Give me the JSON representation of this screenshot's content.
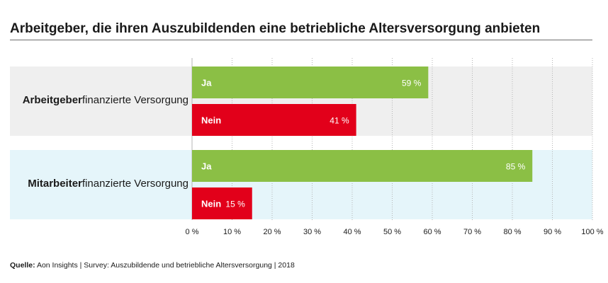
{
  "chart_data": {
    "type": "bar",
    "orientation": "horizontal",
    "title": "Arbeitgeber, die ihren Auszubildenden eine betriebliche Altersversorgung anbieten",
    "xlim": [
      0,
      100
    ],
    "x_ticks": [
      "0 %",
      "10 %",
      "20 %",
      "30 %",
      "40 %",
      "50 %",
      "60 %",
      "70 %",
      "80 %",
      "90 %",
      "100 %"
    ],
    "groups": [
      {
        "label_bold": "Arbeitgeber",
        "label_rest": "finanzierte Versorgung",
        "band_color": "#efefef",
        "bars": [
          {
            "name": "Ja",
            "value": 59,
            "value_label": "59 %",
            "color": "#8bbf45"
          },
          {
            "name": "Nein",
            "value": 41,
            "value_label": "41 %",
            "color": "#e2001a"
          }
        ]
      },
      {
        "label_bold": "Mitarbeiter",
        "label_rest": "finanzierte Versorgung",
        "band_color": "#e5f5fa",
        "bars": [
          {
            "name": "Ja",
            "value": 85,
            "value_label": "85 %",
            "color": "#8bbf45"
          },
          {
            "name": "Nein",
            "value": 15,
            "value_label": "15 %",
            "color": "#e2001a"
          }
        ]
      }
    ]
  },
  "source": {
    "label": "Quelle:",
    "text": "Aon Insights  |  Survey: Auszubildende und betriebliche Altersversorgung  |  2018"
  }
}
